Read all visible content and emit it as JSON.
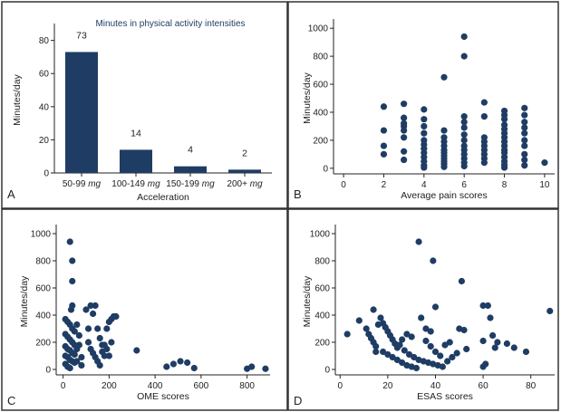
{
  "colors": {
    "mark": "#1f3d64",
    "panel_border": "#333333",
    "background": "#ffffff"
  },
  "panel_labels": [
    "A",
    "B",
    "C",
    "D"
  ],
  "chart_data": [
    {
      "panel": "A",
      "type": "bar",
      "title": "Minutes in physical activity intensities",
      "categories": [
        "50-99 mg",
        "100-149 mg",
        "150-199 mg",
        "200+ mg"
      ],
      "values": [
        73,
        14,
        4,
        2
      ],
      "data_labels": [
        "73",
        "14",
        "4",
        "2"
      ],
      "xlabel": "Acceleration",
      "ylabel": "Minutes/day",
      "ylim": [
        0,
        88
      ],
      "yticks": [
        0,
        20,
        40,
        60,
        80
      ],
      "grid": false
    },
    {
      "panel": "B",
      "type": "scatter",
      "title": "",
      "xlabel": "Average pain scores",
      "ylabel": "Minutes/day",
      "xlim": [
        -0.5,
        10.5
      ],
      "ylim": [
        -40,
        1040
      ],
      "xticks": [
        0,
        2,
        4,
        6,
        8,
        10
      ],
      "yticks": [
        0,
        200,
        400,
        600,
        800,
        1000
      ],
      "grid": false,
      "points": [
        [
          2,
          440
        ],
        [
          2,
          270
        ],
        [
          2,
          160
        ],
        [
          2,
          100
        ],
        [
          3,
          460
        ],
        [
          3,
          360
        ],
        [
          3,
          320
        ],
        [
          3,
          300
        ],
        [
          3,
          270
        ],
        [
          3,
          220
        ],
        [
          3,
          120
        ],
        [
          3,
          60
        ],
        [
          4,
          420
        ],
        [
          4,
          350
        ],
        [
          4,
          300
        ],
        [
          4,
          250
        ],
        [
          4,
          200
        ],
        [
          4,
          170
        ],
        [
          4,
          140
        ],
        [
          4,
          110
        ],
        [
          4,
          80
        ],
        [
          4,
          50
        ],
        [
          4,
          20
        ],
        [
          4,
          5
        ],
        [
          5,
          650
        ],
        [
          5,
          270
        ],
        [
          5,
          220
        ],
        [
          5,
          190
        ],
        [
          5,
          160
        ],
        [
          5,
          130
        ],
        [
          5,
          110
        ],
        [
          5,
          90
        ],
        [
          5,
          70
        ],
        [
          5,
          50
        ],
        [
          5,
          30
        ],
        [
          5,
          10
        ],
        [
          6,
          940
        ],
        [
          6,
          800
        ],
        [
          6,
          370
        ],
        [
          6,
          330
        ],
        [
          6,
          290
        ],
        [
          6,
          240
        ],
        [
          6,
          200
        ],
        [
          6,
          160
        ],
        [
          6,
          130
        ],
        [
          6,
          100
        ],
        [
          6,
          70
        ],
        [
          6,
          40
        ],
        [
          6,
          15
        ],
        [
          7,
          470
        ],
        [
          7,
          370
        ],
        [
          7,
          220
        ],
        [
          7,
          190
        ],
        [
          7,
          160
        ],
        [
          7,
          130
        ],
        [
          7,
          100
        ],
        [
          7,
          70
        ],
        [
          7,
          40
        ],
        [
          8,
          410
        ],
        [
          8,
          380
        ],
        [
          8,
          350
        ],
        [
          8,
          310
        ],
        [
          8,
          280
        ],
        [
          8,
          250
        ],
        [
          8,
          220
        ],
        [
          8,
          190
        ],
        [
          8,
          160
        ],
        [
          8,
          130
        ],
        [
          8,
          110
        ],
        [
          8,
          80
        ],
        [
          8,
          50
        ],
        [
          8,
          25
        ],
        [
          8,
          5
        ],
        [
          9,
          430
        ],
        [
          9,
          380
        ],
        [
          9,
          330
        ],
        [
          9,
          290
        ],
        [
          9,
          250
        ],
        [
          9,
          200
        ],
        [
          9,
          160
        ],
        [
          9,
          100
        ],
        [
          9,
          60
        ],
        [
          9,
          20
        ],
        [
          10,
          40
        ]
      ]
    },
    {
      "panel": "C",
      "type": "scatter",
      "title": "",
      "xlabel": "OME scores",
      "ylabel": "Minutes/day",
      "xlim": [
        -30,
        900
      ],
      "ylim": [
        -40,
        1040
      ],
      "xticks": [
        0,
        200,
        400,
        600,
        800
      ],
      "yticks": [
        0,
        200,
        400,
        600,
        800,
        1000
      ],
      "grid": false,
      "points": [
        [
          30,
          940
        ],
        [
          40,
          800
        ],
        [
          40,
          650
        ],
        [
          40,
          470
        ],
        [
          35,
          440
        ],
        [
          10,
          370
        ],
        [
          20,
          350
        ],
        [
          30,
          330
        ],
        [
          40,
          300
        ],
        [
          50,
          280
        ],
        [
          10,
          260
        ],
        [
          20,
          240
        ],
        [
          30,
          220
        ],
        [
          40,
          200
        ],
        [
          50,
          180
        ],
        [
          10,
          170
        ],
        [
          20,
          150
        ],
        [
          30,
          140
        ],
        [
          40,
          120
        ],
        [
          50,
          110
        ],
        [
          10,
          100
        ],
        [
          20,
          90
        ],
        [
          30,
          70
        ],
        [
          40,
          60
        ],
        [
          50,
          50
        ],
        [
          10,
          40
        ],
        [
          20,
          20
        ],
        [
          30,
          10
        ],
        [
          60,
          330
        ],
        [
          60,
          150
        ],
        [
          60,
          60
        ],
        [
          70,
          250
        ],
        [
          70,
          180
        ],
        [
          80,
          90
        ],
        [
          80,
          30
        ],
        [
          100,
          440
        ],
        [
          110,
          300
        ],
        [
          120,
          470
        ],
        [
          130,
          410
        ],
        [
          140,
          470
        ],
        [
          150,
          300
        ],
        [
          110,
          200
        ],
        [
          120,
          150
        ],
        [
          130,
          120
        ],
        [
          140,
          90
        ],
        [
          150,
          60
        ],
        [
          160,
          230
        ],
        [
          170,
          180
        ],
        [
          170,
          130
        ],
        [
          180,
          100
        ],
        [
          190,
          300
        ],
        [
          200,
          350
        ],
        [
          210,
          370
        ],
        [
          220,
          390
        ],
        [
          230,
          390
        ],
        [
          210,
          200
        ],
        [
          180,
          180
        ],
        [
          190,
          150
        ],
        [
          200,
          100
        ],
        [
          160,
          30
        ],
        [
          320,
          140
        ],
        [
          450,
          20
        ],
        [
          480,
          40
        ],
        [
          510,
          60
        ],
        [
          540,
          50
        ],
        [
          570,
          10
        ],
        [
          800,
          5
        ],
        [
          820,
          20
        ],
        [
          880,
          5
        ]
      ]
    },
    {
      "panel": "D",
      "type": "scatter",
      "title": "",
      "xlabel": "ESAS scores",
      "ylabel": "Minutes/day",
      "xlim": [
        -2,
        90
      ],
      "ylim": [
        -40,
        1040
      ],
      "xticks": [
        0,
        20,
        40,
        60,
        80
      ],
      "yticks": [
        0,
        200,
        400,
        600,
        800,
        1000
      ],
      "grid": false,
      "points": [
        [
          33,
          940
        ],
        [
          39,
          800
        ],
        [
          51,
          650
        ],
        [
          60,
          470
        ],
        [
          62,
          470
        ],
        [
          88,
          430
        ],
        [
          14,
          440
        ],
        [
          3,
          260
        ],
        [
          8,
          360
        ],
        [
          11,
          300
        ],
        [
          12,
          260
        ],
        [
          13,
          230
        ],
        [
          14,
          200
        ],
        [
          15,
          170
        ],
        [
          15,
          130
        ],
        [
          16,
          330
        ],
        [
          17,
          380
        ],
        [
          18,
          340
        ],
        [
          19,
          310
        ],
        [
          20,
          280
        ],
        [
          21,
          250
        ],
        [
          22,
          220
        ],
        [
          23,
          190
        ],
        [
          24,
          160
        ],
        [
          18,
          130
        ],
        [
          20,
          110
        ],
        [
          22,
          90
        ],
        [
          24,
          70
        ],
        [
          26,
          50
        ],
        [
          28,
          30
        ],
        [
          30,
          20
        ],
        [
          32,
          10
        ],
        [
          34,
          380
        ],
        [
          36,
          300
        ],
        [
          38,
          280
        ],
        [
          40,
          460
        ],
        [
          25,
          180
        ],
        [
          27,
          140
        ],
        [
          29,
          110
        ],
        [
          31,
          90
        ],
        [
          33,
          70
        ],
        [
          35,
          60
        ],
        [
          37,
          50
        ],
        [
          39,
          40
        ],
        [
          41,
          30
        ],
        [
          43,
          20
        ],
        [
          45,
          60
        ],
        [
          47,
          90
        ],
        [
          49,
          120
        ],
        [
          50,
          300
        ],
        [
          52,
          290
        ],
        [
          53,
          150
        ],
        [
          46,
          200
        ],
        [
          44,
          180
        ],
        [
          42,
          100
        ],
        [
          40,
          130
        ],
        [
          38,
          170
        ],
        [
          36,
          210
        ],
        [
          30,
          240
        ],
        [
          28,
          260
        ],
        [
          26,
          220
        ],
        [
          60,
          210
        ],
        [
          61,
          40
        ],
        [
          63,
          380
        ],
        [
          64,
          250
        ],
        [
          66,
          200
        ],
        [
          70,
          190
        ],
        [
          73,
          160
        ],
        [
          78,
          130
        ],
        [
          65,
          160
        ],
        [
          60,
          20
        ]
      ]
    }
  ]
}
